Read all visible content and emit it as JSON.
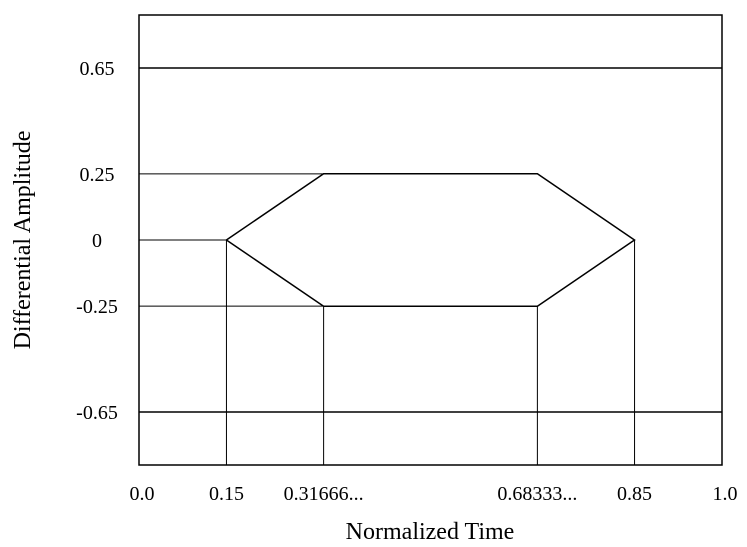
{
  "chart_data": {
    "type": "line",
    "title": "",
    "xlabel": "Normalized Time",
    "ylabel": "Differential Amplitude",
    "xlim": [
      0,
      1
    ],
    "ylim": [
      -0.85,
      0.85
    ],
    "x_ticks": [
      {
        "value": 0.0,
        "label": "0.0"
      },
      {
        "value": 0.15,
        "label": "0.15"
      },
      {
        "value": 0.316667,
        "label": "0.31666..."
      },
      {
        "value": 0.683333,
        "label": "0.68333..."
      },
      {
        "value": 0.85,
        "label": "0.85"
      },
      {
        "value": 1.0,
        "label": "1.0"
      }
    ],
    "y_ticks": [
      {
        "value": 0.65,
        "label": "0.65"
      },
      {
        "value": 0.25,
        "label": "0.25"
      },
      {
        "value": 0,
        "label": "0"
      },
      {
        "value": -0.25,
        "label": "-0.25"
      },
      {
        "value": -0.65,
        "label": "-0.65"
      }
    ],
    "limits": [
      0.65,
      -0.65
    ],
    "eye_mask": [
      {
        "x": 0.15,
        "y": 0
      },
      {
        "x": 0.316667,
        "y": 0.25
      },
      {
        "x": 0.683333,
        "y": 0.25
      },
      {
        "x": 0.85,
        "y": 0
      },
      {
        "x": 0.683333,
        "y": -0.25
      },
      {
        "x": 0.316667,
        "y": -0.25
      }
    ],
    "guides": {
      "h_left": [
        0.25,
        0,
        -0.25
      ],
      "v_down": [
        0.15,
        0.316667,
        0.683333,
        0.85
      ]
    },
    "grid": false,
    "legend": "none"
  }
}
